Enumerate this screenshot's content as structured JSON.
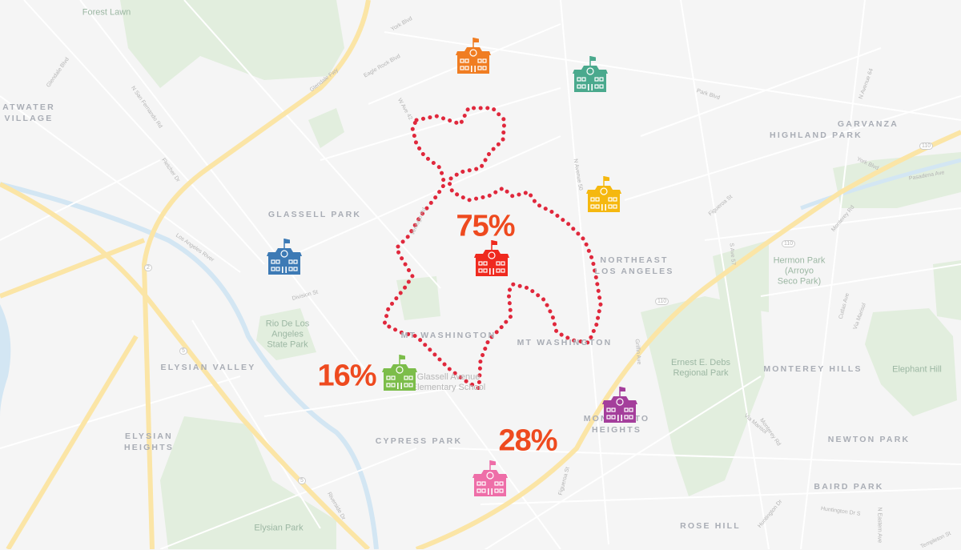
{
  "map": {
    "neighborhoods": [
      "ATWATER\nVILLAGE",
      "GLASSELL PARK",
      "HIGHLAND PARK",
      "GARVANZA",
      "NORTHEAST\nLOS ANGELES",
      "MT WASHINGTON",
      "ELYSIAN VALLEY",
      "ELYSIAN\nHEIGHTS",
      "CYPRESS PARK",
      "MONTEREY HILLS",
      "NEWTON PARK",
      "BAIRD PARK",
      "ROSE HILL",
      "MONTECITO\nHEIGHTS",
      "MT WASHINGTON"
    ],
    "pois": [
      "Forest Lawn",
      "Rio De Los\nAngeles\nState Park",
      "Hermon Park\n(Arroyo\nSeco Park)",
      "Ernest E. Debs\nRegional Park",
      "Elephant Hill",
      "Elysian Park",
      "Glassell Avenue\nElementary School"
    ],
    "streets": [
      "York Blvd",
      "Eagle Rock Blvd",
      "Glendale Blvd",
      "N San Fernando Rd",
      "Glendale Fwy",
      "Fletcher Dr",
      "W Ave 42",
      "N Avenue 50",
      "Figueroa St",
      "Park Blvd",
      "York Blvd",
      "Pasadena Ave",
      "Monterey Rd",
      "N Avenue 64",
      "S Ave 57",
      "Cutlas Ave",
      "Via Marisol",
      "Monterey Rd",
      "Huntington Dr S",
      "Huntington Dr",
      "N Eastern Ave",
      "Templeton St",
      "Division St",
      "Los Angeles River",
      "Riverside Dr",
      "Griffin Ave",
      "Figueroa St",
      "Via Marisol",
      "Verdugo Rd"
    ],
    "highway_shields": [
      "110",
      "110",
      "2",
      "5",
      "5",
      "110"
    ],
    "colors": {
      "background": "#f5f5f5",
      "roads": "#ffffff",
      "freeway": "#fbe5a6",
      "park": "#e2eede",
      "water": "#d3e6f3",
      "boundary": "#e0283c",
      "label": "#a9adb5"
    }
  },
  "boundary": {
    "style": "dotted",
    "color": "#e0283c"
  },
  "percentages": [
    {
      "label": "75%",
      "color": "#ee4a1f"
    },
    {
      "label": "16%",
      "color": "#ee4a1f"
    },
    {
      "label": "28%",
      "color": "#ee4a1f"
    }
  ],
  "schools": [
    {
      "icon": "school-icon",
      "color": "#f07d22"
    },
    {
      "icon": "school-icon",
      "color": "#4aa98d"
    },
    {
      "icon": "school-icon",
      "color": "#f5b80f"
    },
    {
      "icon": "school-icon",
      "color": "#3d7ab5"
    },
    {
      "icon": "school-icon",
      "color": "#ef2a1f"
    },
    {
      "icon": "school-icon",
      "color": "#7cbd4a"
    },
    {
      "icon": "school-icon",
      "color": "#a43e9b"
    },
    {
      "icon": "school-icon",
      "color": "#ee6ea8"
    }
  ]
}
